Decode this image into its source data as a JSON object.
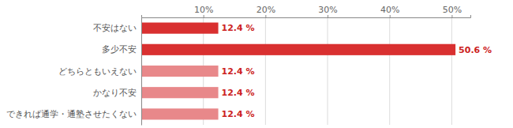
{
  "chart_data": {
    "type": "bar",
    "orientation": "horizontal",
    "categories": [
      "不安はない",
      "多少不安",
      "どちらともいえない",
      "かなり不安",
      "できれば通学・通塾させたくない"
    ],
    "values": [
      12.4,
      50.6,
      12.4,
      12.4,
      12.4
    ],
    "value_labels": [
      "12.4 %",
      "50.6 %",
      "12.4 %",
      "12.4 %",
      "12.4 %"
    ],
    "data_labels": true,
    "colors": [
      "#d93030",
      "#d93030",
      "#e8888a",
      "#e8888a",
      "#e8888a"
    ],
    "xlim": [
      0,
      53
    ],
    "xticks": [
      {
        "value": 10,
        "label": "10%"
      },
      {
        "value": 20,
        "label": "20%"
      },
      {
        "value": 30,
        "label": "30%"
      },
      {
        "value": 40,
        "label": "40%"
      },
      {
        "value": 50,
        "label": "50%"
      }
    ],
    "grid": true
  }
}
